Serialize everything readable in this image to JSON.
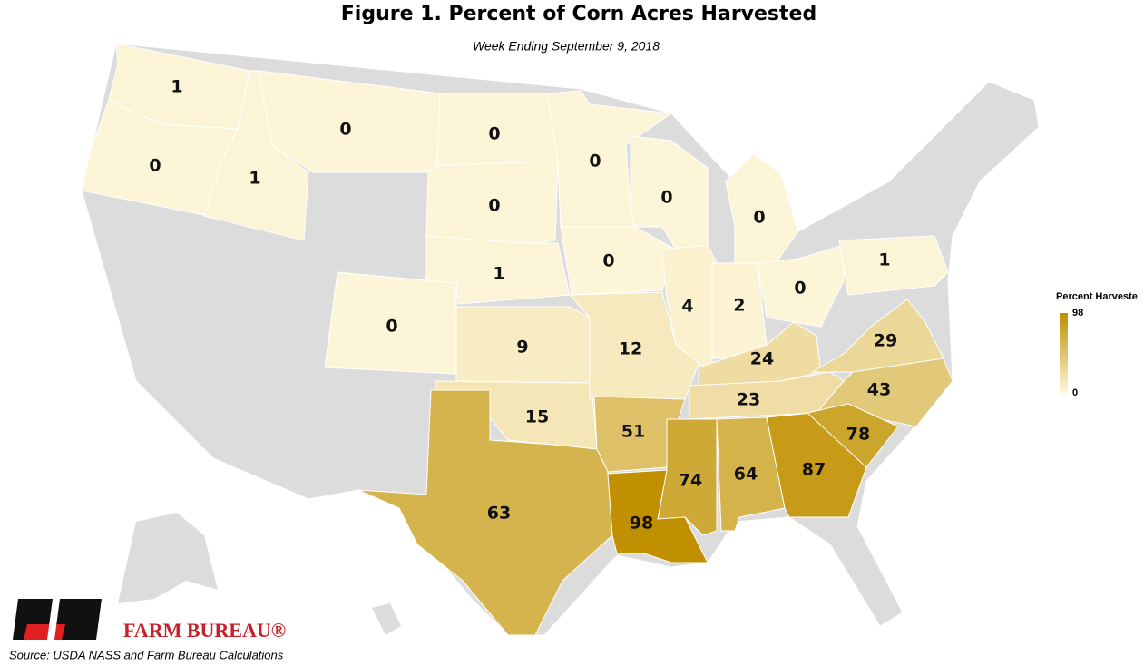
{
  "chart_data": {
    "type": "choropleth",
    "title": "Figure 1. Percent of Corn Acres Harvested",
    "subtitle": "Week Ending September 9, 2018",
    "values": [
      1,
      0,
      1,
      0,
      0,
      0,
      1,
      0,
      9,
      15,
      63,
      0,
      0,
      0,
      0,
      4,
      12,
      2,
      0,
      1,
      24,
      23,
      29,
      43,
      51,
      74,
      98,
      64,
      87,
      78
    ],
    "legend_title": "Percent Harveste",
    "colorlim": [
      0,
      98
    ],
    "colorticks": [
      98,
      0
    ],
    "colors": [
      "#fdf5d8",
      "#c09000"
    ],
    "logo_text": "FARM BUREAU®",
    "source": "Source: USDA NASS and Farm Bureau Calculations"
  }
}
